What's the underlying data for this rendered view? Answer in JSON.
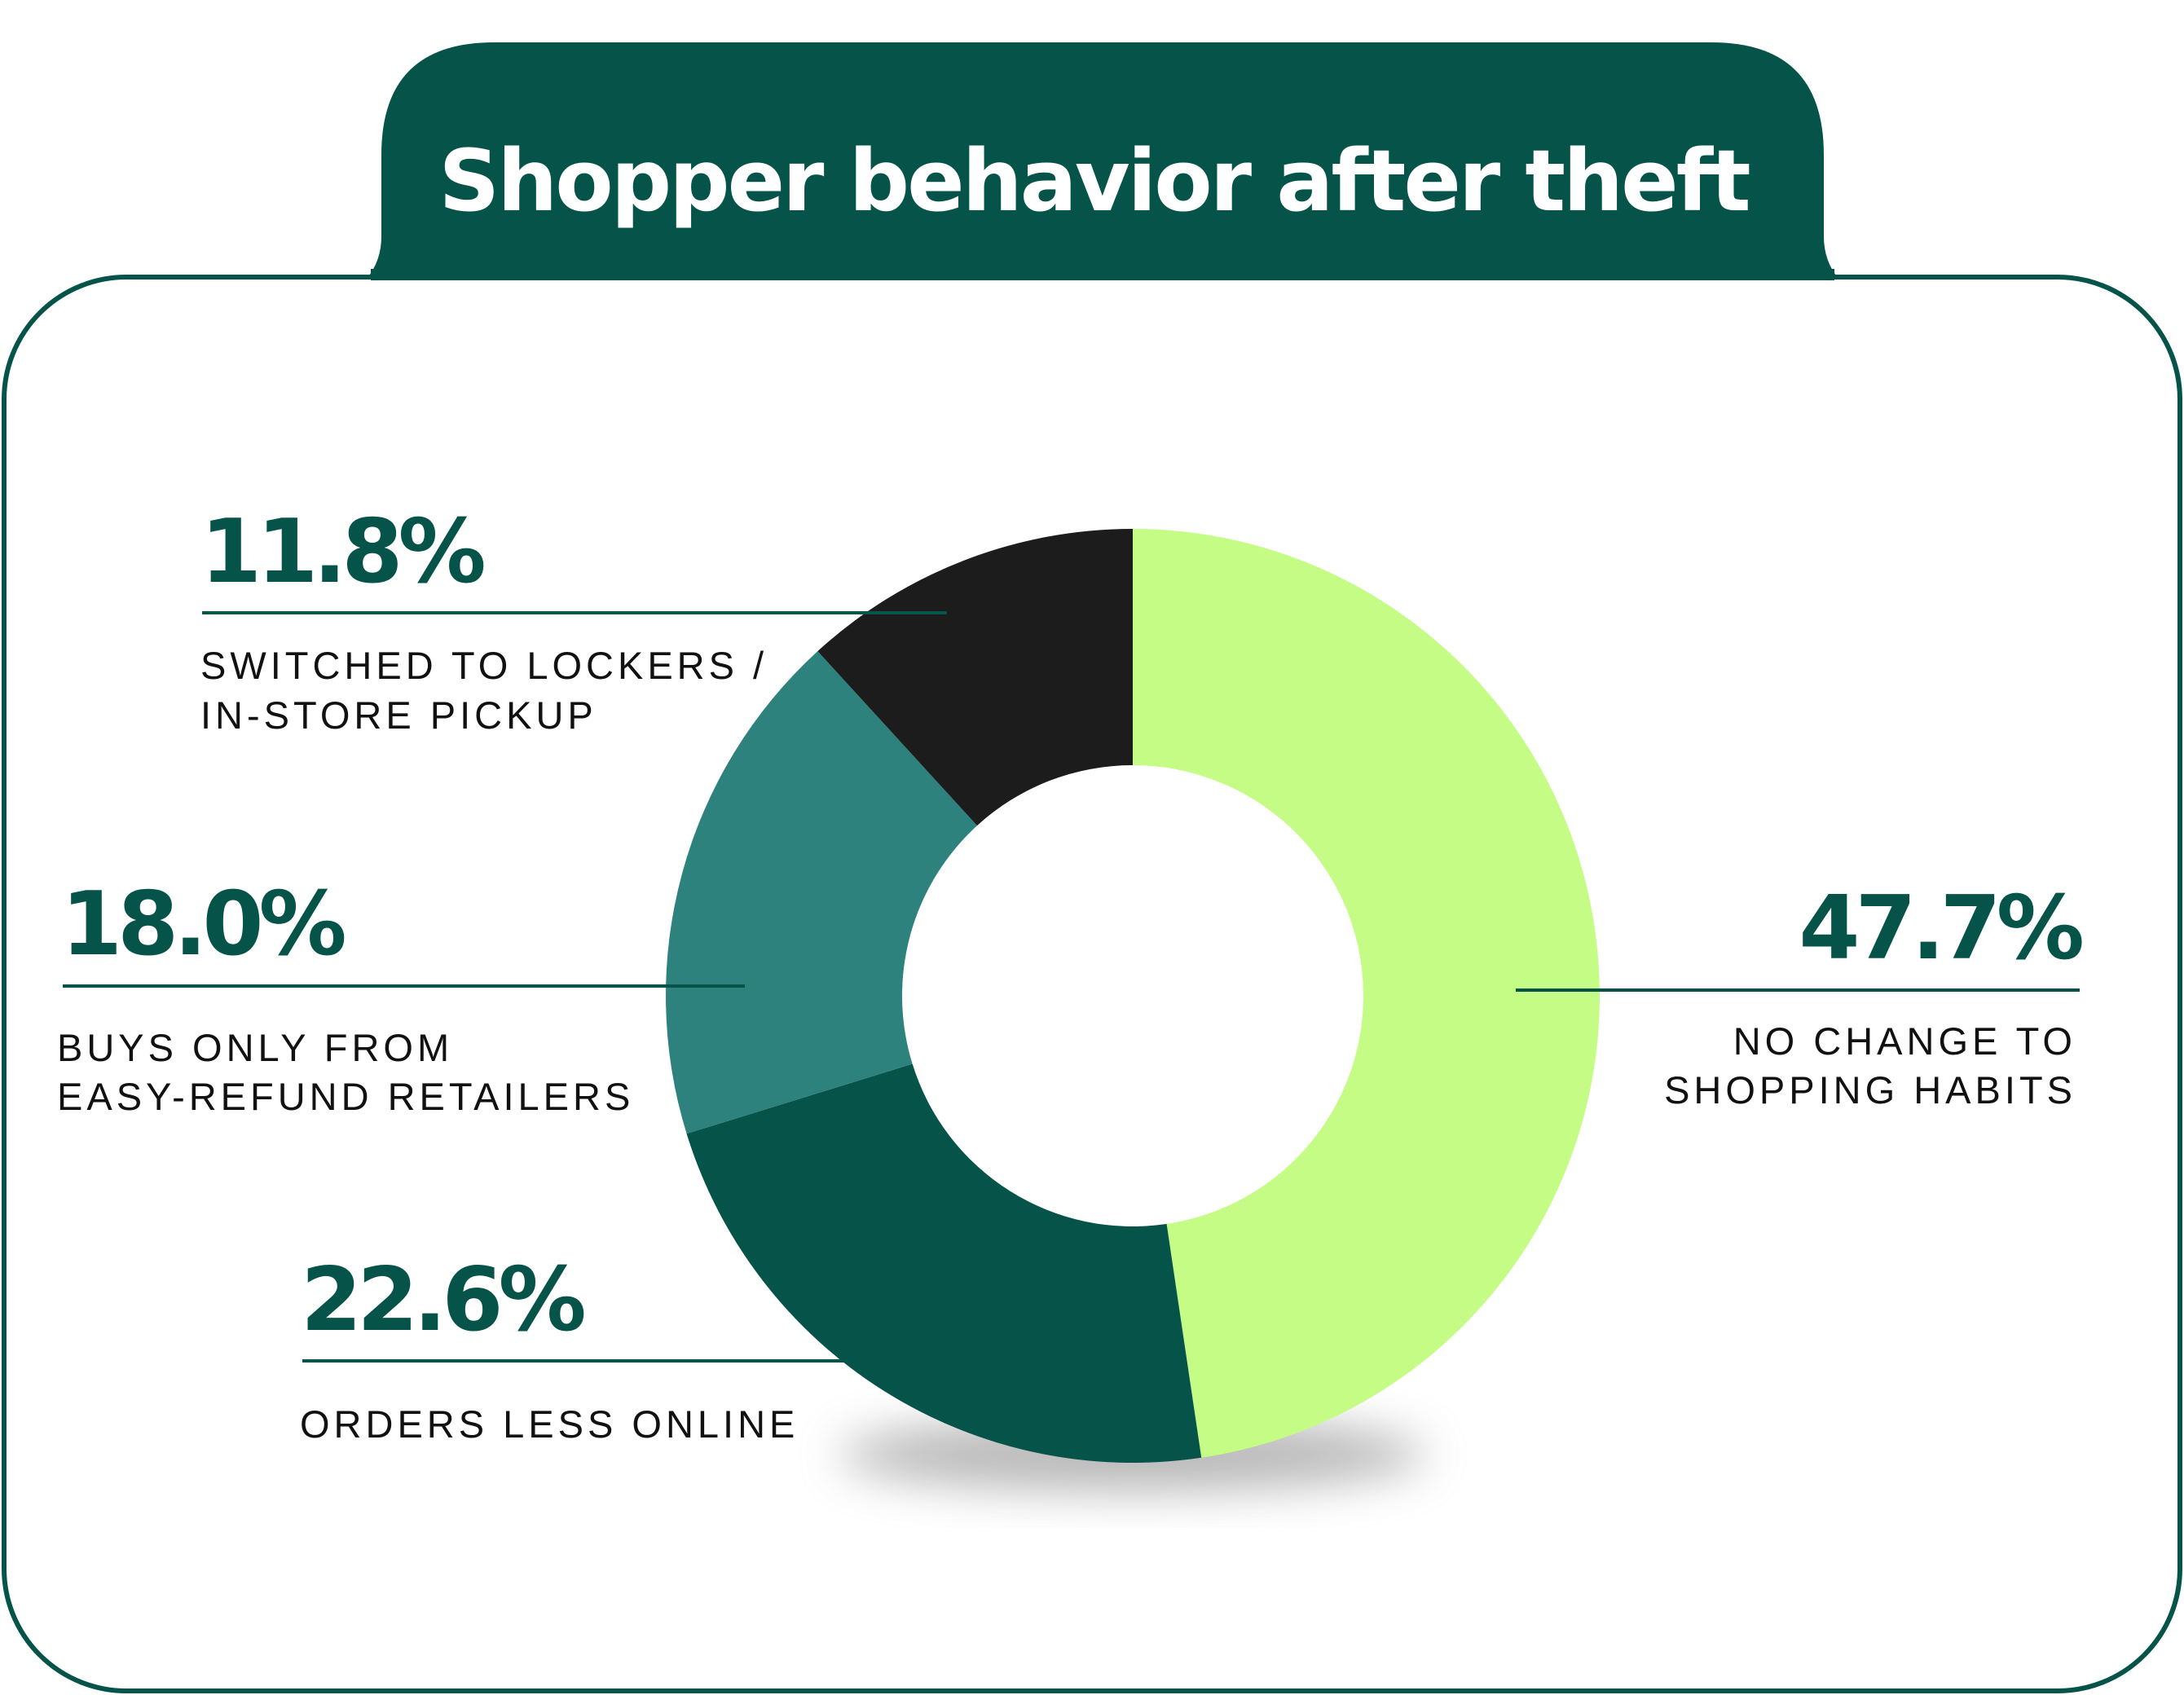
{
  "title": "Shopper behavior after theft",
  "colors": {
    "frame": "#065449",
    "background": "#ffffff"
  },
  "chart_data": {
    "type": "pie",
    "donut": true,
    "title": "Shopper behavior after theft",
    "slices": [
      {
        "value": 47.7,
        "label_value": "47.7%",
        "label_lines": [
          "NO CHANGE TO",
          "SHOPPING HABITS"
        ],
        "color": "#C5FC86"
      },
      {
        "value": 22.6,
        "label_value": "22.6%",
        "label_lines": [
          "ORDERS LESS ONLINE"
        ],
        "color": "#065449"
      },
      {
        "value": 18.0,
        "label_value": "18.0%",
        "label_lines": [
          "BUYS ONLY FROM",
          "EASY-REFUND RETAILERS"
        ],
        "color": "#2E827E"
      },
      {
        "value": 11.8,
        "label_value": "11.8%",
        "label_lines": [
          "SWITCHED TO LOCKERS /",
          "IN-STORE PICKUP"
        ],
        "color": "#1C1C1C"
      }
    ],
    "start": "top",
    "direction": "clockwise"
  }
}
